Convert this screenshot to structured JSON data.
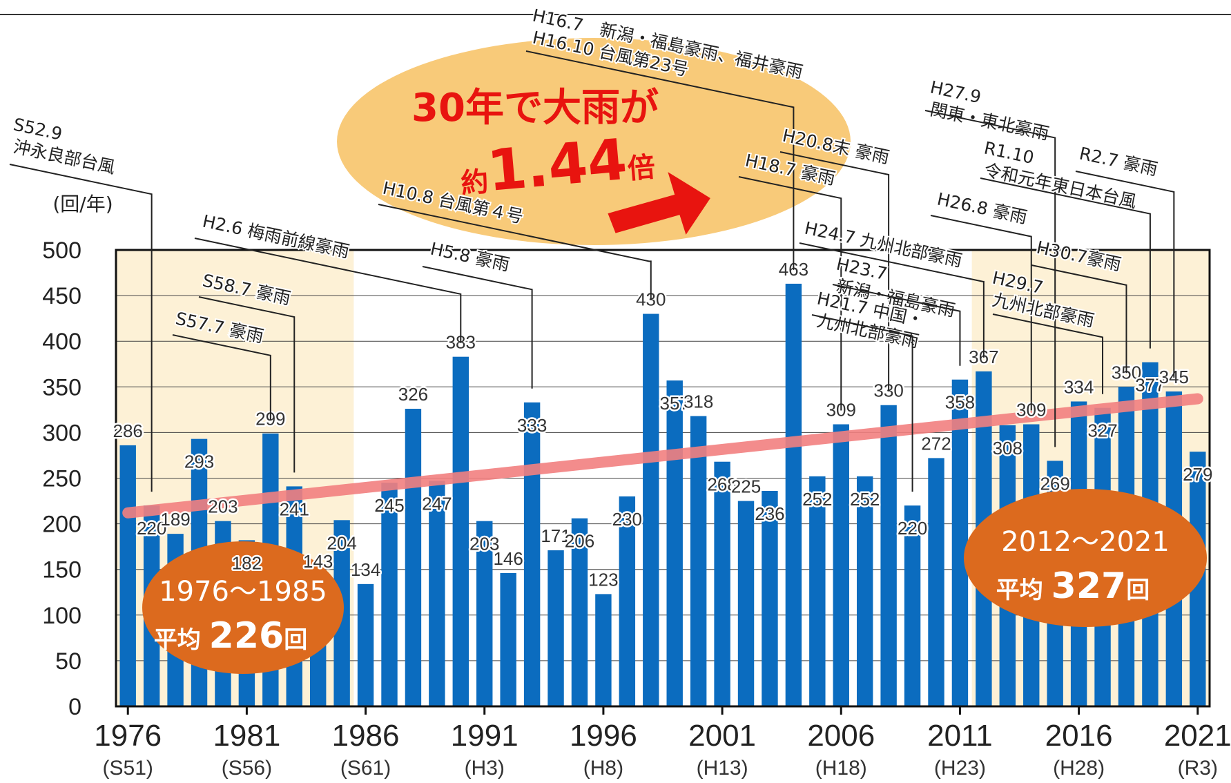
{
  "header_text": "",
  "chart_data": {
    "type": "bar",
    "unit": "(回/年)",
    "ylim": [
      0,
      500
    ],
    "yticks": [
      0,
      50,
      100,
      150,
      200,
      250,
      300,
      350,
      400,
      450,
      500
    ],
    "grid": true,
    "years": [
      1976,
      1977,
      1978,
      1979,
      1980,
      1981,
      1982,
      1983,
      1984,
      1985,
      1986,
      1987,
      1988,
      1989,
      1990,
      1991,
      1992,
      1993,
      1994,
      1995,
      1996,
      1997,
      1998,
      1999,
      2000,
      2001,
      2002,
      2003,
      2004,
      2005,
      2006,
      2007,
      2008,
      2009,
      2010,
      2011,
      2012,
      2013,
      2014,
      2015,
      2016,
      2017,
      2018,
      2019,
      2020,
      2021
    ],
    "values": [
      286,
      220,
      189,
      293,
      203,
      182,
      299,
      241,
      143,
      204,
      134,
      245,
      326,
      247,
      383,
      203,
      146,
      333,
      171,
      206,
      123,
      230,
      430,
      357,
      318,
      268,
      225,
      236,
      463,
      252,
      309,
      252,
      330,
      220,
      272,
      358,
      367,
      308,
      309,
      269,
      334,
      327,
      350,
      377,
      345,
      279
    ],
    "x_ticks": [
      {
        "year": 1976,
        "label": "1976",
        "era": "(S51)"
      },
      {
        "year": 1981,
        "label": "1981",
        "era": "(S56)"
      },
      {
        "year": 1986,
        "label": "1986",
        "era": "(S61)"
      },
      {
        "year": 1991,
        "label": "1991",
        "era": "(H3)"
      },
      {
        "year": 1996,
        "label": "1996",
        "era": "(H8)"
      },
      {
        "year": 2001,
        "label": "2001",
        "era": "(H13)"
      },
      {
        "year": 2006,
        "label": "2006",
        "era": "(H18)"
      },
      {
        "year": 2011,
        "label": "2011",
        "era": "(H23)"
      },
      {
        "year": 2016,
        "label": "2016",
        "era": "(H28)"
      },
      {
        "year": 2021,
        "label": "2021",
        "era": "(R3)"
      }
    ],
    "shaded_periods": [
      [
        1976,
        1985
      ],
      [
        2012,
        2021
      ]
    ],
    "trend_line": {
      "from": [
        1976,
        212
      ],
      "to": [
        2021,
        337
      ]
    },
    "colors": {
      "bar": "#0b6cbf",
      "trend": "#f28080",
      "shade": "#fdf1d6",
      "bubble": "#dc6a1e",
      "highlight_bubble": "#f7c46a",
      "headline": "#e8140f"
    }
  },
  "headline": {
    "line1": "30年で大雨が",
    "prefix": "約",
    "number": "1.44",
    "suffix": "倍"
  },
  "averages": [
    {
      "period": "1976～1985",
      "label": "平均",
      "value": "226",
      "unit": "回"
    },
    {
      "period": "2012～2021",
      "label": "平均",
      "value": "327",
      "unit": "回"
    }
  ],
  "events": [
    {
      "lines": [
        "S52.9",
        "沖永良部台風"
      ]
    },
    {
      "lines": [
        "S57.7 豪雨"
      ]
    },
    {
      "lines": [
        "S58.7 豪雨"
      ]
    },
    {
      "lines": [
        "H2.6 梅雨前線豪雨"
      ]
    },
    {
      "lines": [
        "H5.8 豪雨"
      ]
    },
    {
      "lines": [
        "H10.8 台風第４号"
      ]
    },
    {
      "lines": [
        "H16.7　新潟・福島豪雨、福井豪雨"
      ]
    },
    {
      "lines": [
        "H16.10 台風第23号"
      ]
    },
    {
      "lines": [
        "H18.7 豪雨"
      ]
    },
    {
      "lines": [
        "H20.8末 豪雨"
      ]
    },
    {
      "lines": [
        "H21.7 中国・",
        "九州北部豪雨"
      ]
    },
    {
      "lines": [
        "H23.7",
        "新潟・福島豪雨"
      ]
    },
    {
      "lines": [
        "H24.7 九州北部豪雨"
      ]
    },
    {
      "lines": [
        "H26.8 豪雨"
      ]
    },
    {
      "lines": [
        "H27.9",
        "関東・東北豪雨"
      ]
    },
    {
      "lines": [
        "H29.7",
        "九州北部豪雨"
      ]
    },
    {
      "lines": [
        "H30.7豪雨"
      ]
    },
    {
      "lines": [
        "R1.10",
        "令和元年東日本台風"
      ]
    },
    {
      "lines": [
        "R2.7 豪雨"
      ]
    }
  ]
}
